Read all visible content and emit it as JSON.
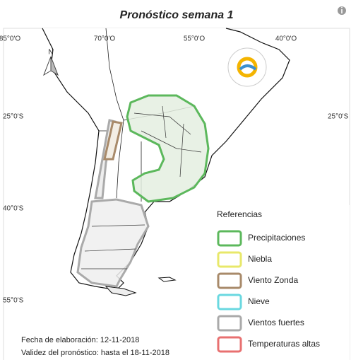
{
  "header": {
    "title": "Pronóstico semana 1"
  },
  "map": {
    "north_label": "N",
    "longitude_labels": [
      "85°0'O",
      "70°0'O",
      "55°0'O",
      "40°0'O"
    ],
    "latitude_labels": [
      "25°0'S",
      "40°0'S",
      "55°0'S"
    ]
  },
  "legend": {
    "title": "Referencias",
    "items": [
      {
        "label": "Precipitaciones",
        "color": "#5cb85c"
      },
      {
        "label": "Niebla",
        "color": "#e8e86a"
      },
      {
        "label": "Viento Zonda",
        "color": "#a88a6a"
      },
      {
        "label": "Nieve",
        "color": "#6ad8e0"
      },
      {
        "label": "Vientos fuertes",
        "color": "#aaaaaa"
      },
      {
        "label": "Temperaturas altas",
        "color": "#e87070"
      }
    ]
  },
  "footer": {
    "created": "Fecha de elaboración: 12-11-2018",
    "validity": "Validez del pronóstico: hasta el 18-11-2018"
  }
}
